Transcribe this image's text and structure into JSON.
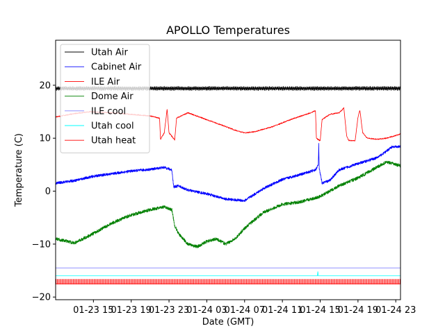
{
  "chart_data": {
    "type": "line",
    "title": "APOLLO Temperatures",
    "xlabel": "Date (GMT)",
    "ylabel": "Temperature (C)",
    "x_unit": "hours since 01-23 11:00 GMT",
    "xlim": [
      0,
      36.5
    ],
    "ylim": [
      -20.5,
      28.5
    ],
    "x_ticks": [
      {
        "x": 4,
        "label": "01-23 15"
      },
      {
        "x": 8,
        "label": "01-23 19"
      },
      {
        "x": 12,
        "label": "01-23 23"
      },
      {
        "x": 16,
        "label": "01-24 03"
      },
      {
        "x": 20,
        "label": "01-24 07"
      },
      {
        "x": 24,
        "label": "01-24 11"
      },
      {
        "x": 28,
        "label": "01-24 15"
      },
      {
        "x": 32,
        "label": "01-24 19"
      },
      {
        "x": 36,
        "label": "01-24 23"
      }
    ],
    "y_ticks": [
      {
        "y": 20,
        "label": "20"
      },
      {
        "y": 10,
        "label": "10"
      },
      {
        "y": 0,
        "label": "0"
      },
      {
        "y": -10,
        "label": "−10"
      },
      {
        "y": -20,
        "label": "−20"
      }
    ],
    "legend_position": "top-left",
    "series": [
      {
        "name": "Utah Air",
        "color": "#000000",
        "style": "oscillating",
        "noise": 0.35,
        "points": [
          [
            0,
            19.4
          ],
          [
            36.5,
            19.4
          ]
        ]
      },
      {
        "name": "Cabinet Air",
        "color": "#0000ff",
        "style": "noisy",
        "noise": 0.25,
        "points": [
          [
            0,
            1.5
          ],
          [
            2,
            2
          ],
          [
            4,
            2.8
          ],
          [
            6,
            3.3
          ],
          [
            8,
            3.8
          ],
          [
            10,
            4.1
          ],
          [
            11.5,
            4.5
          ],
          [
            12.3,
            4.0
          ],
          [
            12.5,
            0.8
          ],
          [
            13,
            1.0
          ],
          [
            14,
            0.2
          ],
          [
            16,
            -0.5
          ],
          [
            18,
            -1.5
          ],
          [
            20,
            -1.8
          ],
          [
            22,
            0.5
          ],
          [
            24,
            2.2
          ],
          [
            26,
            3.2
          ],
          [
            27.5,
            4.0
          ],
          [
            27.8,
            5.0
          ],
          [
            27.85,
            8.8
          ],
          [
            27.9,
            4.2
          ],
          [
            28.2,
            1.5
          ],
          [
            29,
            2.0
          ],
          [
            30,
            4.0
          ],
          [
            32,
            5.2
          ],
          [
            34,
            6.3
          ],
          [
            35,
            7.5
          ],
          [
            35.5,
            8.3
          ],
          [
            36.5,
            8.4
          ]
        ]
      },
      {
        "name": "ILE Air",
        "color": "#ff0000",
        "style": "smooth",
        "noise": 0.1,
        "points": [
          [
            0,
            14.0
          ],
          [
            1.5,
            14.5
          ],
          [
            3.5,
            15.0
          ],
          [
            6,
            14.8
          ],
          [
            8,
            14.5
          ],
          [
            10,
            14.2
          ],
          [
            11,
            13.8
          ],
          [
            11.1,
            9.8
          ],
          [
            11.5,
            11.0
          ],
          [
            11.8,
            15.5
          ],
          [
            12,
            11.0
          ],
          [
            12.6,
            9.7
          ],
          [
            12.8,
            13.8
          ],
          [
            14,
            14.8
          ],
          [
            16,
            13.5
          ],
          [
            18,
            12.2
          ],
          [
            19,
            11.5
          ],
          [
            20,
            11.0
          ],
          [
            21,
            11.2
          ],
          [
            23,
            12.2
          ],
          [
            25,
            13.6
          ],
          [
            27,
            14.8
          ],
          [
            27.5,
            15.2
          ],
          [
            27.6,
            10.0
          ],
          [
            28,
            9.5
          ],
          [
            28.2,
            13.5
          ],
          [
            29,
            14.5
          ],
          [
            30,
            14.8
          ],
          [
            30.5,
            15.7
          ],
          [
            30.8,
            10.5
          ],
          [
            31,
            9.6
          ],
          [
            31.7,
            9.5
          ],
          [
            32,
            14.0
          ],
          [
            32.2,
            15.3
          ],
          [
            32.5,
            11.0
          ],
          [
            33,
            10.0
          ],
          [
            34,
            9.8
          ],
          [
            35,
            10.0
          ],
          [
            36,
            10.5
          ],
          [
            36.5,
            10.8
          ]
        ]
      },
      {
        "name": "Dome Air",
        "color": "#008000",
        "style": "noisy",
        "noise": 0.3,
        "points": [
          [
            0,
            -9.0
          ],
          [
            2,
            -9.8
          ],
          [
            4,
            -8.0
          ],
          [
            6,
            -6.0
          ],
          [
            8,
            -4.5
          ],
          [
            10,
            -3.5
          ],
          [
            11.5,
            -3.0
          ],
          [
            12.3,
            -3.5
          ],
          [
            12.6,
            -6.5
          ],
          [
            13,
            -8.0
          ],
          [
            14,
            -10.0
          ],
          [
            15,
            -10.5
          ],
          [
            16,
            -9.5
          ],
          [
            17,
            -9.0
          ],
          [
            18,
            -10.0
          ],
          [
            19,
            -9.0
          ],
          [
            20,
            -7.0
          ],
          [
            22,
            -4.0
          ],
          [
            24,
            -2.5
          ],
          [
            26,
            -2.0
          ],
          [
            28,
            -1.0
          ],
          [
            30,
            1.0
          ],
          [
            32,
            2.5
          ],
          [
            34,
            4.5
          ],
          [
            35,
            5.5
          ],
          [
            36.5,
            4.8
          ]
        ]
      },
      {
        "name": "ILE cool",
        "color": "#8080ff",
        "style": "flat",
        "noise": 0,
        "points": [
          [
            0,
            -14.5
          ],
          [
            36.5,
            -14.5
          ]
        ]
      },
      {
        "name": "Utah cool",
        "color": "#00ffff",
        "style": "flat",
        "noise": 0,
        "points": [
          [
            0,
            -16.0
          ],
          [
            27.7,
            -16.0
          ],
          [
            27.75,
            -15.2
          ],
          [
            27.8,
            -16.0
          ],
          [
            36.5,
            -16.0
          ]
        ]
      },
      {
        "name": "Utah heat",
        "color": "#ff0000",
        "style": "pulses",
        "noise": 0,
        "points": [
          [
            0,
            -17.5
          ],
          [
            36.5,
            -17.5
          ]
        ],
        "pulse_top": -16.6,
        "pulse_bottom": -17.6
      }
    ]
  }
}
